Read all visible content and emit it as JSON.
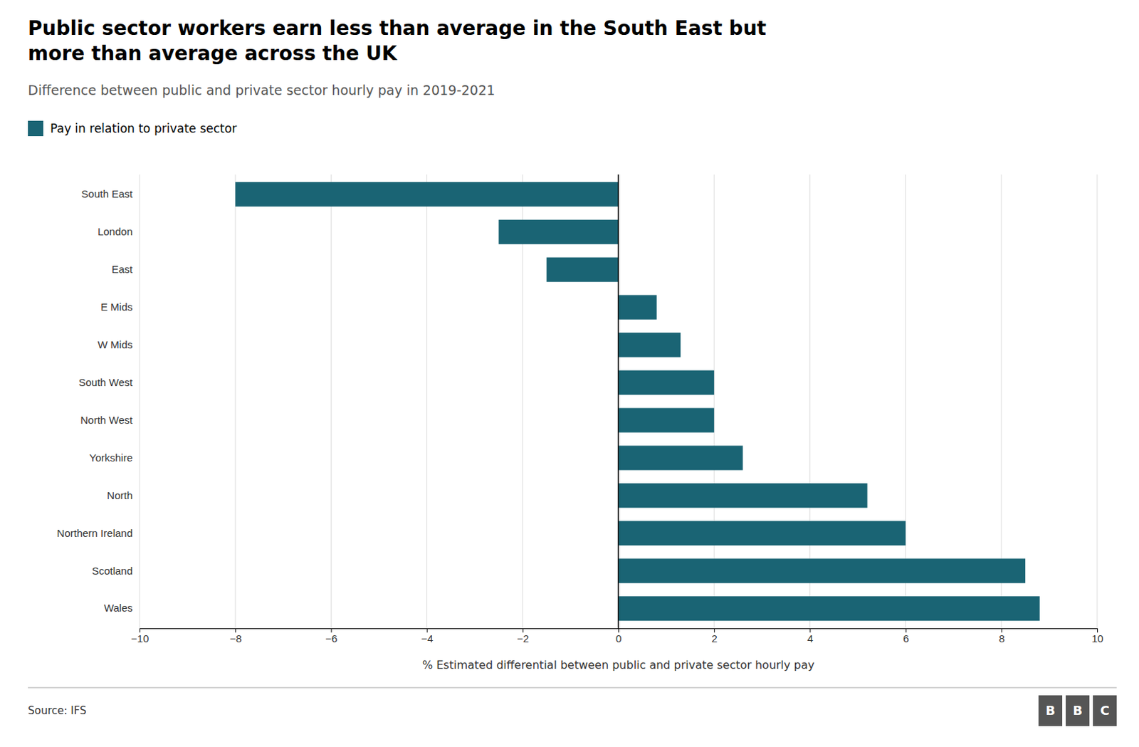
{
  "chart_data": {
    "type": "bar",
    "orientation": "horizontal",
    "title": [
      "Public sector workers earn less than average in the South East but",
      "more than average across the UK"
    ],
    "subtitle": "Difference between public and private sector hourly pay in 2019-2021",
    "x_label": "% Estimated differential between public and private sector hourly pay",
    "annotations": [
      "Source: IFS",
      "BBC"
    ],
    "categories": [
      "South East",
      "London",
      "East",
      "E Mids",
      "W Mids",
      "South West",
      "North West",
      "Yorkshire",
      "North",
      "Northern Ireland",
      "Scotland",
      "Wales"
    ],
    "series": [
      {
        "name": "Pay in relation to private sector",
        "color": "#1a6474",
        "values": [
          -8.0,
          -2.5,
          -1.5,
          0.8,
          1.3,
          2.0,
          2.0,
          2.6,
          5.2,
          6.0,
          8.5,
          8.8
        ]
      }
    ],
    "xlim": [
      -10,
      10
    ],
    "xticks": [
      {
        "value": -10,
        "label": "−10"
      },
      {
        "value": -8,
        "label": "−8"
      },
      {
        "value": -6,
        "label": "−6"
      },
      {
        "value": -4,
        "label": "−4"
      },
      {
        "value": -2,
        "label": "−2"
      },
      0,
      2,
      4,
      6,
      8,
      10
    ],
    "grid": true,
    "legend": "top-left"
  }
}
